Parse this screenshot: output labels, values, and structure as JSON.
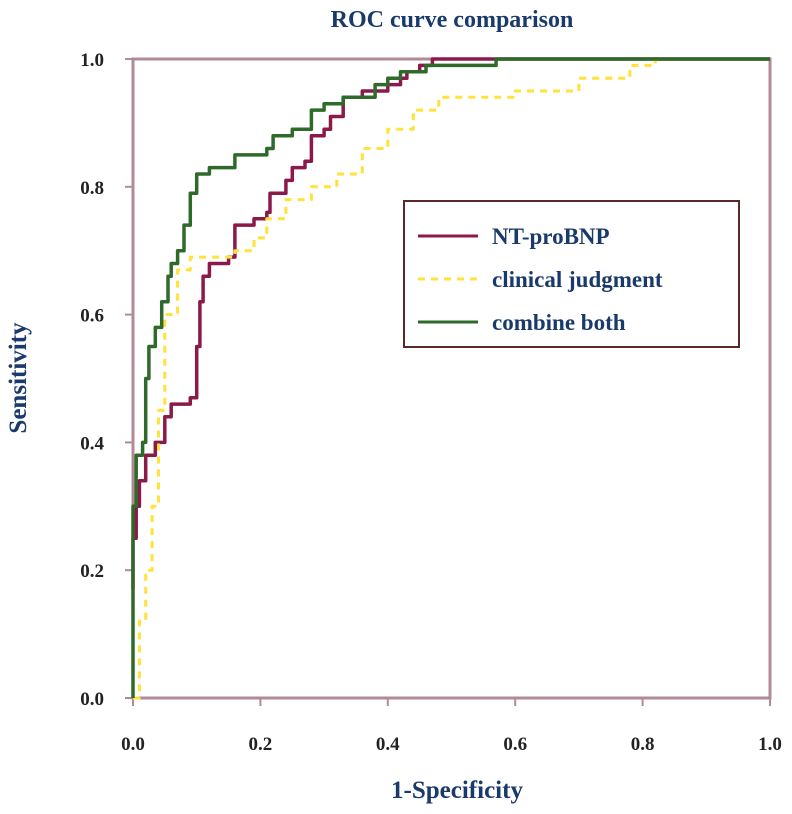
{
  "chart_data": {
    "type": "line",
    "title": "ROC curve comparison",
    "xlabel": "1-Specificity",
    "ylabel": "Sensitivity",
    "xlim": [
      0,
      1
    ],
    "ylim": [
      0,
      1
    ],
    "x_ticks": [
      "0.0",
      "0.2",
      "0.4",
      "0.6",
      "0.8",
      "1.0"
    ],
    "y_ticks": [
      "0.0",
      "0.2",
      "0.4",
      "0.6",
      "0.8",
      "1.0"
    ],
    "grid": false,
    "legend_position": "center-right",
    "series": [
      {
        "name": "NT-proBNP",
        "color": "#8b1a4a",
        "style": "solid",
        "points": [
          [
            0,
            0.17
          ],
          [
            0,
            0.25
          ],
          [
            0.005,
            0.3
          ],
          [
            0.01,
            0.34
          ],
          [
            0.02,
            0.38
          ],
          [
            0.035,
            0.4
          ],
          [
            0.05,
            0.44
          ],
          [
            0.06,
            0.46
          ],
          [
            0.08,
            0.46
          ],
          [
            0.09,
            0.47
          ],
          [
            0.1,
            0.55
          ],
          [
            0.105,
            0.62
          ],
          [
            0.11,
            0.66
          ],
          [
            0.12,
            0.68
          ],
          [
            0.15,
            0.69
          ],
          [
            0.16,
            0.74
          ],
          [
            0.19,
            0.75
          ],
          [
            0.21,
            0.76
          ],
          [
            0.215,
            0.79
          ],
          [
            0.24,
            0.81
          ],
          [
            0.25,
            0.83
          ],
          [
            0.27,
            0.84
          ],
          [
            0.28,
            0.88
          ],
          [
            0.3,
            0.89
          ],
          [
            0.31,
            0.91
          ],
          [
            0.33,
            0.94
          ],
          [
            0.36,
            0.95
          ],
          [
            0.4,
            0.96
          ],
          [
            0.42,
            0.97
          ],
          [
            0.43,
            0.98
          ],
          [
            0.45,
            0.99
          ],
          [
            0.47,
            1.0
          ],
          [
            1.0,
            1.0
          ]
        ]
      },
      {
        "name": "clinical judgment",
        "color": "#ffe23a",
        "style": "dashed",
        "points": [
          [
            0,
            0
          ],
          [
            0.01,
            0.12
          ],
          [
            0.02,
            0.2
          ],
          [
            0.03,
            0.3
          ],
          [
            0.04,
            0.45
          ],
          [
            0.05,
            0.6
          ],
          [
            0.07,
            0.67
          ],
          [
            0.09,
            0.69
          ],
          [
            0.16,
            0.7
          ],
          [
            0.19,
            0.72
          ],
          [
            0.21,
            0.75
          ],
          [
            0.24,
            0.78
          ],
          [
            0.28,
            0.8
          ],
          [
            0.32,
            0.82
          ],
          [
            0.36,
            0.86
          ],
          [
            0.4,
            0.89
          ],
          [
            0.44,
            0.92
          ],
          [
            0.48,
            0.94
          ],
          [
            0.55,
            0.94
          ],
          [
            0.6,
            0.95
          ],
          [
            0.7,
            0.97
          ],
          [
            0.78,
            0.99
          ],
          [
            0.82,
            1.0
          ],
          [
            1.0,
            1.0
          ]
        ]
      },
      {
        "name": "combine both",
        "color": "#2e6b2a",
        "style": "solid",
        "points": [
          [
            0,
            0
          ],
          [
            0,
            0.3
          ],
          [
            0.005,
            0.38
          ],
          [
            0.015,
            0.4
          ],
          [
            0.02,
            0.5
          ],
          [
            0.025,
            0.55
          ],
          [
            0.035,
            0.58
          ],
          [
            0.045,
            0.62
          ],
          [
            0.055,
            0.66
          ],
          [
            0.06,
            0.68
          ],
          [
            0.07,
            0.7
          ],
          [
            0.08,
            0.74
          ],
          [
            0.09,
            0.79
          ],
          [
            0.1,
            0.82
          ],
          [
            0.12,
            0.83
          ],
          [
            0.16,
            0.85
          ],
          [
            0.21,
            0.86
          ],
          [
            0.22,
            0.88
          ],
          [
            0.25,
            0.89
          ],
          [
            0.28,
            0.92
          ],
          [
            0.3,
            0.93
          ],
          [
            0.33,
            0.94
          ],
          [
            0.38,
            0.96
          ],
          [
            0.4,
            0.97
          ],
          [
            0.42,
            0.98
          ],
          [
            0.46,
            0.99
          ],
          [
            0.55,
            0.99
          ],
          [
            0.57,
            1.0
          ],
          [
            1.0,
            1.0
          ]
        ]
      }
    ]
  }
}
